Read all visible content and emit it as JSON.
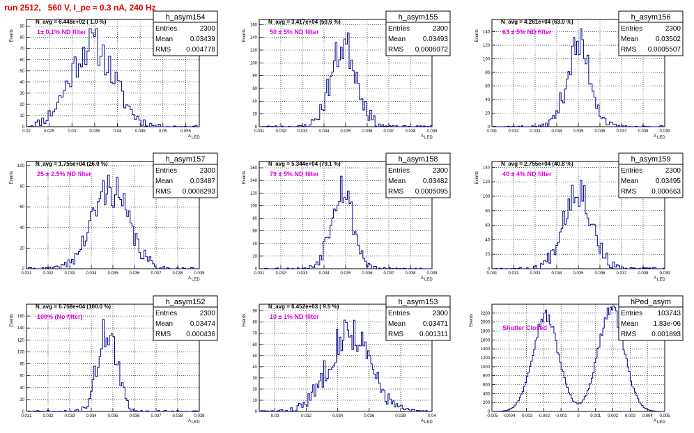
{
  "page_title": "run 2512,   560 V, I_pe ≈ 0.3 nA, 240 Hz",
  "chart_data": [
    {
      "type": "histogram",
      "name": "h_asym154",
      "navg": "N_avg = 6.448e+02 ( 1.0 %)",
      "filter": "1± 0.1% ND filter",
      "stats": {
        "entries": "2300",
        "mean": "0.03439",
        "rms": "0.004778"
      },
      "xlim": [
        0.02,
        0.058
      ],
      "ylim": [
        0,
        96
      ],
      "xticks": [
        "0.02",
        "0.025",
        "0.03",
        "0.035",
        "0.04",
        "0.045",
        "0.05",
        "0.055"
      ],
      "xtick_values": [
        0.02,
        0.025,
        0.03,
        0.035,
        0.04,
        0.045,
        0.05,
        0.055
      ],
      "yticks": [
        0,
        10,
        20,
        30,
        40,
        50,
        60,
        70,
        80,
        90
      ],
      "xlabel": "A",
      "xlabel_sub": "LED",
      "ylabel": "Events",
      "mean": 0.03439,
      "rms": 0.004778,
      "peak": 92,
      "bins": 80,
      "seed": 11
    },
    {
      "type": "histogram",
      "name": "h_asym155",
      "navg": "N_avg = 3.417e+04 (50.6 %)",
      "filter": "50 ± 5% ND filter",
      "stats": {
        "entries": "2300",
        "mean": "0.03493",
        "rms": "0.0006072"
      },
      "xlim": [
        0.031,
        0.039
      ],
      "ylim": [
        0,
        168
      ],
      "xticks": [
        "0.031",
        "0.032",
        "0.033",
        "0.034",
        "0.035",
        "0.036",
        "0.037",
        "0.038",
        "0.039"
      ],
      "xtick_values": [
        0.031,
        0.032,
        0.033,
        0.034,
        0.035,
        0.036,
        0.037,
        0.038,
        0.039
      ],
      "yticks": [
        0,
        20,
        40,
        60,
        80,
        100,
        120,
        140,
        160
      ],
      "xlabel": "A",
      "xlabel_sub": "LED",
      "ylabel": "Events",
      "mean": 0.03493,
      "rms": 0.0006072,
      "peak": 160,
      "bins": 100,
      "seed": 23
    },
    {
      "type": "histogram",
      "name": "h_asym156",
      "navg": "N_avg = 4.261e+04 (63.0 %)",
      "filter": "63 ± 5% ND filter",
      "stats": {
        "entries": "2300",
        "mean": "0.03502",
        "rms": "0.0005507"
      },
      "xlim": [
        0.031,
        0.039
      ],
      "ylim": [
        0,
        158
      ],
      "xticks": [
        "0.031",
        "0.032",
        "0.033",
        "0.034",
        "0.035",
        "0.036",
        "0.037",
        "0.038",
        "0.039"
      ],
      "xtick_values": [
        0.031,
        0.032,
        0.033,
        0.034,
        0.035,
        0.036,
        0.037,
        0.038,
        0.039
      ],
      "yticks": [
        0,
        20,
        40,
        60,
        80,
        100,
        120,
        140
      ],
      "xlabel": "A",
      "xlabel_sub": "LED",
      "ylabel": "Events",
      "mean": 0.03502,
      "rms": 0.0005507,
      "peak": 150,
      "bins": 100,
      "seed": 37
    },
    {
      "type": "histogram",
      "name": "h_asym157",
      "navg": "N_avg = 1.755e+04 (26.0 %)",
      "filter": "25 ± 2.5% ND filter",
      "stats": {
        "entries": "2300",
        "mean": "0.03487",
        "rms": "0.0008293"
      },
      "xlim": [
        0.031,
        0.039
      ],
      "ylim": [
        0,
        104
      ],
      "xticks": [
        "0.031",
        "0.032",
        "0.033",
        "0.034",
        "0.035",
        "0.036",
        "0.037",
        "0.038",
        "0.039"
      ],
      "xtick_values": [
        0.031,
        0.032,
        0.033,
        0.034,
        0.035,
        0.036,
        0.037,
        0.038,
        0.039
      ],
      "yticks": [
        0,
        20,
        40,
        60,
        80,
        100
      ],
      "xlabel": "A",
      "xlabel_sub": "LED",
      "ylabel": "Events",
      "mean": 0.03487,
      "rms": 0.0008293,
      "peak": 98,
      "bins": 100,
      "seed": 41
    },
    {
      "type": "histogram",
      "name": "h_asym158",
      "navg": "N_avg = 5.344e+04 (79.1 %)",
      "filter": "79 ± 5% ND filter",
      "stats": {
        "entries": "2300",
        "mean": "0.03482",
        "rms": "0.0005095"
      },
      "xlim": [
        0.031,
        0.039
      ],
      "ylim": [
        0,
        170
      ],
      "xticks": [
        "0.031",
        "0.032",
        "0.033",
        "0.034",
        "0.035",
        "0.036",
        "0.037",
        "0.038",
        "0.039"
      ],
      "xtick_values": [
        0.031,
        0.032,
        0.033,
        0.034,
        0.035,
        0.036,
        0.037,
        0.038,
        0.039
      ],
      "yticks": [
        0,
        20,
        40,
        60,
        80,
        100,
        120,
        140,
        160
      ],
      "xlabel": "A",
      "xlabel_sub": "LED",
      "ylabel": "Events",
      "mean": 0.03482,
      "rms": 0.0005095,
      "peak": 164,
      "bins": 100,
      "seed": 53
    },
    {
      "type": "histogram",
      "name": "h_asym159",
      "navg": "N_avg = 2.755e+04 (40.8 %)",
      "filter": "40 ± 4% ND filter",
      "stats": {
        "entries": "2300",
        "mean": "0.03495",
        "rms": "0.000663"
      },
      "xlim": [
        0.031,
        0.039
      ],
      "ylim": [
        0,
        148
      ],
      "xticks": [
        "0.031",
        "0.032",
        "0.033",
        "0.034",
        "0.035",
        "0.036",
        "0.037",
        "0.038",
        "0.039"
      ],
      "xtick_values": [
        0.031,
        0.032,
        0.033,
        0.034,
        0.035,
        0.036,
        0.037,
        0.038,
        0.039
      ],
      "yticks": [
        0,
        20,
        40,
        60,
        80,
        100,
        120,
        140
      ],
      "xlabel": "A",
      "xlabel_sub": "LED",
      "ylabel": "Events",
      "mean": 0.03495,
      "rms": 0.000663,
      "peak": 140,
      "bins": 100,
      "seed": 67
    },
    {
      "type": "histogram",
      "name": "h_asym152",
      "navg": "N_avg = 6.758e+04 (100.0 %)",
      "filter": "100% (No filter)",
      "stats": {
        "entries": "2300",
        "mean": "0.03474",
        "rms": "0.000436"
      },
      "xlim": [
        0.031,
        0.039
      ],
      "ylim": [
        0,
        180
      ],
      "xticks": [
        "0.031",
        "0.032",
        "0.033",
        "0.034",
        "0.035",
        "0.036",
        "0.037",
        "0.038",
        "0.039"
      ],
      "xtick_values": [
        0.031,
        0.032,
        0.033,
        0.034,
        0.035,
        0.036,
        0.037,
        0.038,
        0.039
      ],
      "yticks": [
        0,
        20,
        40,
        60,
        80,
        100,
        120,
        140,
        160
      ],
      "xlabel": "A",
      "xlabel_sub": "LED",
      "ylabel": "Events",
      "mean": 0.03474,
      "rms": 0.000436,
      "peak": 172,
      "bins": 100,
      "seed": 71
    },
    {
      "type": "histogram",
      "name": "h_asym153",
      "navg": "N_avg = 6.452e+03 ( 9.5 %)",
      "filter": "10 ± 1% ND filter",
      "stats": {
        "entries": "2300",
        "mean": "0.03471",
        "rms": "0.001311"
      },
      "xlim": [
        0.029,
        0.04
      ],
      "ylim": [
        0,
        96
      ],
      "xticks": [
        "0.03",
        "0.032",
        "0.034",
        "0.036",
        "0.038",
        "0.04"
      ],
      "xtick_values": [
        0.03,
        0.032,
        0.034,
        0.036,
        0.038,
        0.04
      ],
      "yticks": [
        0,
        10,
        20,
        30,
        40,
        50,
        60,
        70,
        80,
        90
      ],
      "xlabel": "A",
      "xlabel_sub": "LED",
      "ylabel": "Events",
      "mean": 0.03471,
      "rms": 0.001311,
      "peak": 90,
      "bins": 110,
      "seed": 83
    },
    {
      "type": "histogram",
      "name": "hPed_asym",
      "navg": "",
      "filter": "Shutter Closed",
      "stats": {
        "entries": "103743",
        "mean": "1.83e-06",
        "rms": "0.001893"
      },
      "xlim": [
        -0.005,
        0.005
      ],
      "ylim": [
        0,
        2400
      ],
      "xticks": [
        "-0.005",
        "-0.004",
        "-0.003",
        "-0.002",
        "-0.001",
        "0",
        "0.001",
        "0.002",
        "0.003",
        "0.004",
        "0.005"
      ],
      "xtick_values": [
        -0.005,
        -0.004,
        -0.003,
        -0.002,
        -0.001,
        0,
        0.001,
        0.002,
        0.003,
        0.004,
        0.005
      ],
      "yticks": [
        0,
        200,
        400,
        600,
        800,
        1000,
        1200,
        1400,
        1600,
        1800,
        2000,
        2200
      ],
      "xlabel": "A",
      "xlabel_sub": "LED",
      "ylabel": "Events",
      "bimodal": [
        {
          "mean": -0.0019,
          "sigma": 0.00075,
          "peak": 2150
        },
        {
          "mean": 0.0019,
          "sigma": 0.00075,
          "peak": 2300
        }
      ],
      "bins": 120,
      "seed": 97
    }
  ]
}
